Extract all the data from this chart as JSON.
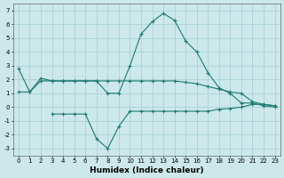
{
  "line1_x": [
    0,
    1,
    2,
    3,
    4,
    5,
    6,
    7,
    8,
    9,
    10,
    11,
    12,
    13,
    14,
    15,
    16,
    17,
    18,
    19,
    20,
    21,
    22,
    23
  ],
  "line1_y": [
    2.8,
    1.1,
    2.1,
    1.9,
    1.9,
    1.9,
    1.9,
    1.9,
    1.0,
    1.0,
    3.0,
    5.3,
    6.2,
    6.8,
    6.3,
    4.8,
    4.0,
    2.5,
    1.4,
    1.0,
    0.3,
    0.3,
    0.1,
    0.0
  ],
  "line2_x": [
    0,
    1,
    2,
    3,
    4,
    5,
    6,
    7,
    8,
    9,
    10,
    11,
    12,
    13,
    14,
    15,
    16,
    17,
    18,
    19,
    20,
    21,
    22,
    23
  ],
  "line2_y": [
    1.1,
    1.1,
    1.9,
    1.9,
    1.9,
    1.9,
    1.9,
    1.9,
    1.9,
    1.9,
    1.9,
    1.9,
    1.9,
    1.9,
    1.9,
    1.8,
    1.7,
    1.5,
    1.3,
    1.1,
    1.0,
    0.4,
    0.2,
    0.1
  ],
  "line3_x": [
    3,
    4,
    5,
    6,
    7,
    8,
    9,
    10,
    11,
    12,
    13,
    14,
    15,
    16,
    17,
    18,
    19,
    20,
    21,
    22,
    23
  ],
  "line3_y": [
    -0.5,
    -0.5,
    -0.5,
    -0.5,
    -2.3,
    -3.0,
    -1.4,
    -0.3,
    -0.3,
    -0.3,
    -0.3,
    -0.3,
    -0.3,
    -0.3,
    -0.3,
    -0.15,
    -0.1,
    -0.0,
    0.2,
    0.2,
    0.1
  ],
  "line_color": "#1a7a6e",
  "bg_color": "#cce8ea",
  "grid_color": "#a0cfd2",
  "xlabel": "Humidex (Indice chaleur)",
  "xlim": [
    -0.5,
    23.5
  ],
  "ylim": [
    -3.5,
    7.5
  ],
  "yticks": [
    -3,
    -2,
    -1,
    0,
    1,
    2,
    3,
    4,
    5,
    6,
    7
  ],
  "xticks": [
    0,
    1,
    2,
    3,
    4,
    5,
    6,
    7,
    8,
    9,
    10,
    11,
    12,
    13,
    14,
    15,
    16,
    17,
    18,
    19,
    20,
    21,
    22,
    23
  ],
  "marker": "+",
  "markersize": 3,
  "linewidth": 0.8,
  "tick_fontsize": 5,
  "xlabel_fontsize": 6.5
}
